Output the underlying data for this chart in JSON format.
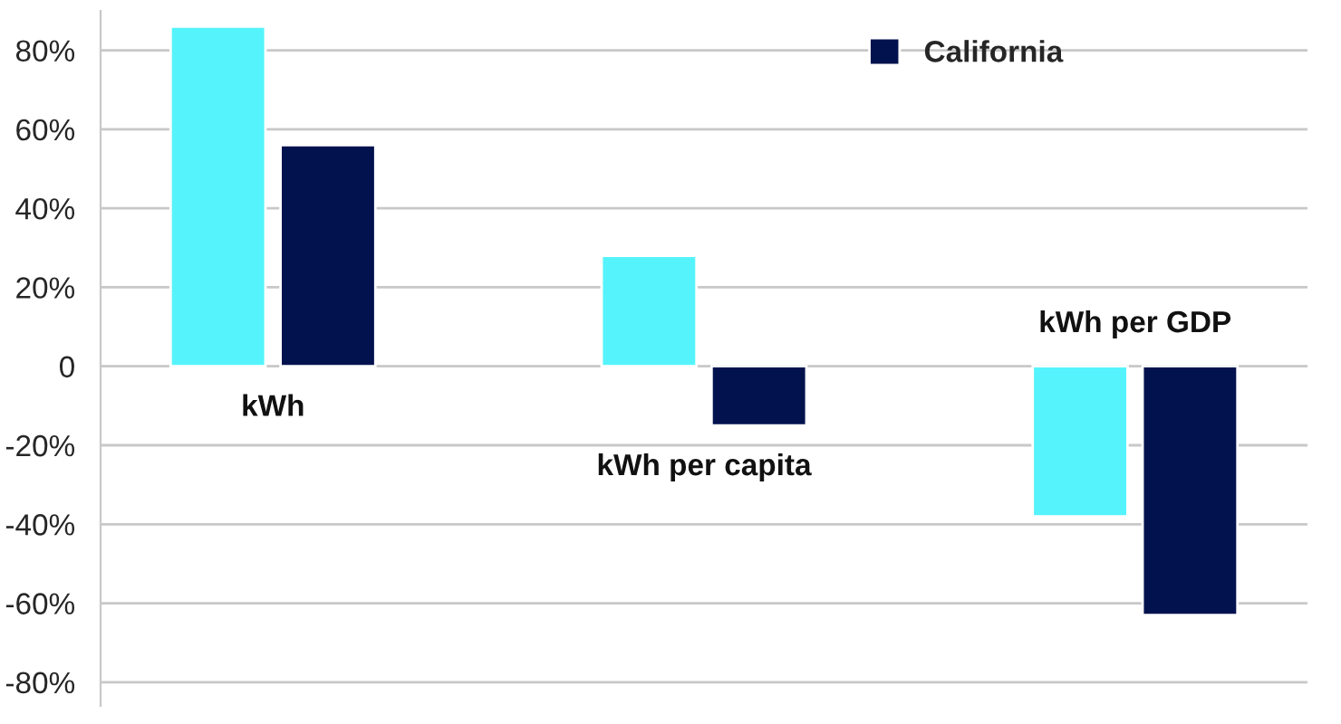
{
  "chart_data": {
    "type": "bar",
    "categories": [
      "kWh",
      "kWh per capita",
      "kWh per GDP"
    ],
    "series": [
      {
        "color": "#55f4fc",
        "values": [
          86,
          28,
          -38
        ]
      },
      {
        "name": "California",
        "color": "#02124e",
        "values": [
          56,
          -15,
          -63
        ]
      }
    ],
    "ylim": [
      -86,
      90
    ],
    "yticks": [
      {
        "value": -80,
        "label": "-80%"
      },
      {
        "value": -60,
        "label": "-60%"
      },
      {
        "value": -40,
        "label": "-40%"
      },
      {
        "value": -20,
        "label": "-20%"
      },
      0,
      {
        "value": 20,
        "label": "20%"
      },
      {
        "value": 40,
        "label": "40%"
      },
      {
        "value": 60,
        "label": "60%"
      },
      {
        "value": 80,
        "label": "80%"
      }
    ],
    "grid": "y",
    "legend": "top right"
  }
}
